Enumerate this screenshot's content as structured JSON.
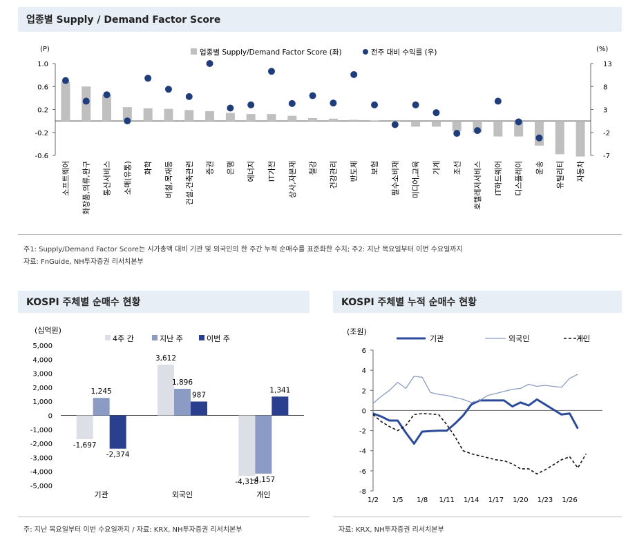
{
  "top": {
    "title": "업종별 Supply / Demand Factor Score",
    "note1": "주1: Supply/Demand Factor Score는 시가총액 대비 기관 및 외국인의 한 주간 누적 순매수를 표준화한 수치; 주2: 지난 목요일부터 이번 수요일까지",
    "note2": "자료: FnGuide, NH투자증권 리서치본부"
  },
  "left": {
    "title": "KOSPI 주체별 순매수 현황",
    "note": "주: 지난 목요일부터 이번 수요일까지 / 자료: KRX, NH투자증권 리서치본부"
  },
  "right": {
    "title": "KOSPI 주체별 누적 순매수 현황",
    "note": "자료: KRX, NH투자증권 리서치본부"
  },
  "chart_data": [
    {
      "type": "bar",
      "categories": [
        "소프트웨어",
        "화장품,의류,완구",
        "통신서비스",
        "소매(유통)",
        "화학",
        "비철,목재등",
        "건설,건축관련",
        "증권",
        "은행",
        "에너지",
        "IT가전",
        "상사,자본재",
        "철강",
        "건강관리",
        "반도체",
        "보험",
        "필수소비재",
        "미디어,교육",
        "기계",
        "조선",
        "호텔레저서비스",
        "IT하드웨어",
        "디스플레이",
        "운송",
        "유틸리티",
        "자동차"
      ],
      "series": [
        {
          "name": "업종별 Supply/Demand Factor Score (좌)",
          "type": "bar",
          "axis": "left",
          "color": "#bfbfbf",
          "values": [
            0.68,
            0.6,
            0.46,
            0.24,
            0.22,
            0.21,
            0.19,
            0.17,
            0.14,
            0.12,
            0.12,
            0.09,
            0.05,
            0.04,
            0.02,
            0.01,
            -0.01,
            -0.1,
            -0.1,
            -0.18,
            -0.2,
            -0.27,
            -0.27,
            -0.43,
            -0.58,
            -0.62
          ]
        },
        {
          "name": "전주 대비 수익률 (우)",
          "type": "scatter",
          "axis": "right",
          "color": "#1f3d7a",
          "values": [
            9.3,
            4.8,
            6.2,
            0.5,
            9.8,
            7.4,
            5.8,
            13.0,
            3.3,
            4.0,
            11.3,
            4.3,
            6.0,
            4.4,
            10.6,
            4.0,
            -0.3,
            4.0,
            2.3,
            -2.2,
            -1.6,
            4.8,
            0.3,
            -3.2,
            null,
            null
          ]
        }
      ],
      "ylim_left": [
        -0.6,
        1.0
      ],
      "yticks_left": [
        "1.0",
        "0.6",
        "0.2",
        "-0.2",
        "-0.6"
      ],
      "ylim_right": [
        -7,
        13
      ],
      "yticks_right": [
        "13",
        "8",
        "3",
        "-2",
        "-7"
      ],
      "ylabel_left": "(P)",
      "ylabel_right": "(%)"
    },
    {
      "type": "bar",
      "categories": [
        "기관",
        "외국인",
        "개인"
      ],
      "series": [
        {
          "name": "4주 간",
          "color": "#dcdfe6",
          "values": [
            -1697,
            3612,
            -4318
          ]
        },
        {
          "name": "지난 주",
          "color": "#8c9bc4",
          "values": [
            1245,
            1896,
            -4157
          ]
        },
        {
          "name": "이번 주",
          "color": "#2b3f8f",
          "values": [
            -2374,
            987,
            1341
          ]
        }
      ],
      "data_labels": [
        [
          "-1,697",
          "1,245",
          "-2,374"
        ],
        [
          "3,612",
          "1,896",
          "987"
        ],
        [
          "-4,318",
          "-4,157",
          "1,341"
        ]
      ],
      "ylabel": "(십억원)",
      "ylim": [
        -5000,
        5000
      ],
      "yticks": [
        "5,000",
        "4,000",
        "3,000",
        "2,000",
        "1,000",
        "0",
        "-1,000",
        "-2,000",
        "-3,000",
        "-4,000",
        "-5,000"
      ]
    },
    {
      "type": "line",
      "x": [
        0,
        1,
        2,
        3,
        4,
        5,
        6,
        7,
        8,
        9,
        10,
        11,
        12,
        13,
        14,
        15,
        16,
        17,
        18,
        19,
        20,
        21,
        22,
        23,
        24,
        25,
        26,
        27,
        28
      ],
      "xticks": [
        "1/2",
        "1/5",
        "1/8",
        "1/11",
        "1/14",
        "1/17",
        "1/20",
        "1/23",
        "1/26"
      ],
      "xtick_index": [
        0,
        3,
        6,
        9,
        12,
        15,
        18,
        21,
        24
      ],
      "series": [
        {
          "name": "기관",
          "color": "#2b4a9a",
          "style": "solid-thick",
          "values": [
            -0.3,
            -0.6,
            -1.0,
            -1.0,
            -2.2,
            -3.3,
            -2.1,
            -2.05,
            -2.0,
            -2.0,
            -1.3,
            -0.5,
            0.6,
            1.0,
            1.0,
            1.0,
            1.0,
            0.4,
            0.8,
            0.5,
            1.1,
            0.6,
            0.1,
            -0.4,
            -0.3,
            -1.8,
            null,
            null,
            null
          ]
        },
        {
          "name": "외국인",
          "color": "#8a9cc6",
          "style": "solid-thin",
          "values": [
            0.7,
            1.4,
            2.0,
            2.8,
            2.2,
            3.4,
            3.3,
            1.8,
            1.6,
            1.5,
            1.3,
            1.1,
            0.8,
            1.0,
            1.5,
            1.7,
            1.9,
            2.1,
            2.2,
            2.6,
            2.4,
            2.5,
            2.4,
            2.3,
            3.2,
            3.6,
            null,
            null,
            null
          ]
        },
        {
          "name": "개인",
          "color": "#111111",
          "style": "dashed",
          "values": [
            -0.4,
            -1.1,
            -1.6,
            -2.0,
            -1.5,
            -0.4,
            -0.3,
            -0.35,
            -0.4,
            -1.4,
            -2.6,
            -4.0,
            -4.3,
            -4.5,
            -4.7,
            -4.9,
            -5.0,
            -5.3,
            -5.8,
            -5.8,
            -6.3,
            -5.9,
            -5.4,
            -4.9,
            -4.6,
            -5.7,
            -4.3,
            null,
            null
          ]
        }
      ],
      "ylabel": "(조원)",
      "ylim": [
        -8,
        6
      ],
      "yticks": [
        "6",
        "4",
        "2",
        "0",
        "-2",
        "-4",
        "-6",
        "-8"
      ]
    }
  ]
}
